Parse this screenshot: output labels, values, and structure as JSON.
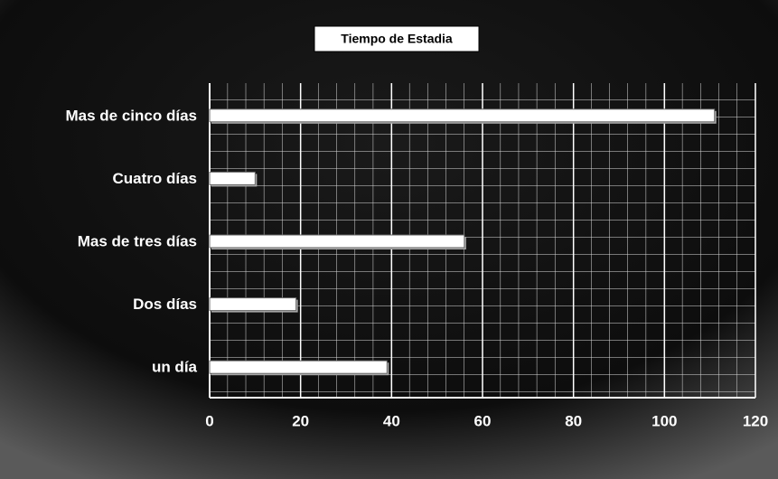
{
  "chart_data": {
    "type": "bar",
    "orientation": "horizontal",
    "title": "Tiempo de Estadia",
    "categories": [
      "Mas de cinco días",
      "Cuatro días",
      "Mas de tres días",
      "Dos días",
      "un día"
    ],
    "values": [
      111,
      10,
      56,
      19,
      39
    ],
    "color": "#ffffff",
    "xlim": [
      0,
      120
    ],
    "xticks": [
      0,
      20,
      40,
      60,
      80,
      100,
      120
    ],
    "grid": true
  }
}
